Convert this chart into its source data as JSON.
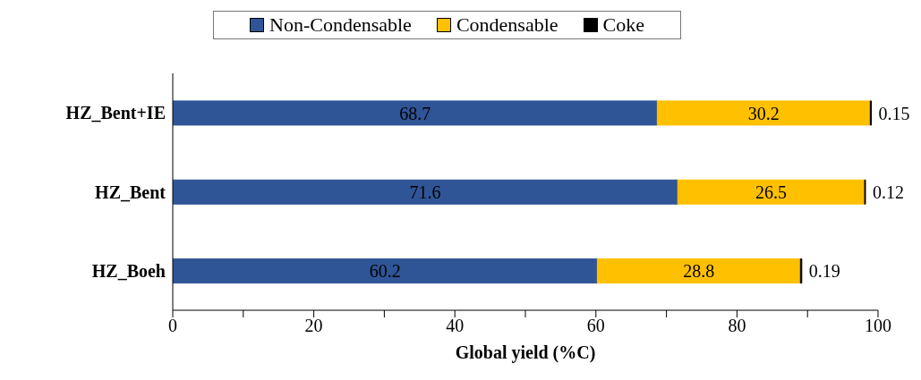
{
  "chart_data": {
    "type": "bar",
    "orientation": "horizontal",
    "stacked": true,
    "xlabel": "Global yield (%C)",
    "categories": [
      "HZ_Bent+IE",
      "HZ_Bent",
      "HZ_Boeh"
    ],
    "series": [
      {
        "name": "Non-Condensable",
        "color": "#2f5597",
        "values": [
          68.7,
          71.6,
          60.2
        ]
      },
      {
        "name": "Condensable",
        "color": "#ffc000",
        "values": [
          30.2,
          26.5,
          28.8
        ]
      },
      {
        "name": "Coke",
        "color": "#000000",
        "values": [
          0.15,
          0.12,
          0.19
        ]
      }
    ],
    "xlim": [
      0,
      100
    ],
    "xticks": [
      0,
      {
        "value": 10,
        "label": null
      },
      20,
      {
        "value": 30,
        "label": null
      },
      40,
      {
        "value": 50,
        "label": null
      },
      60,
      {
        "value": 70,
        "label": null
      },
      80,
      {
        "value": 90,
        "label": null
      },
      100
    ],
    "data_labels": true,
    "legend": "top",
    "grid": false
  }
}
